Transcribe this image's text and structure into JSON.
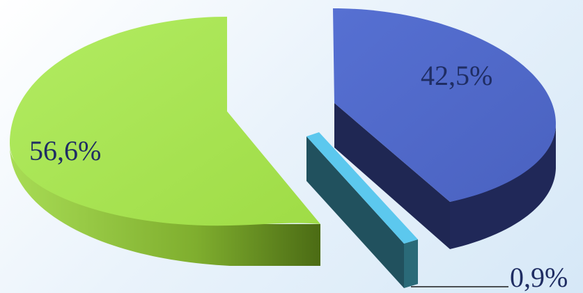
{
  "chart_data": {
    "type": "pie",
    "title": "",
    "values": [
      56.6,
      42.5,
      0.9
    ],
    "labels": [
      "56,6%",
      "42,5%",
      "0,9%"
    ],
    "colors": [
      "#a6e24e",
      "#4e67c8",
      "#5cc8ee"
    ],
    "legend": "none",
    "style": "3d-exploded"
  }
}
